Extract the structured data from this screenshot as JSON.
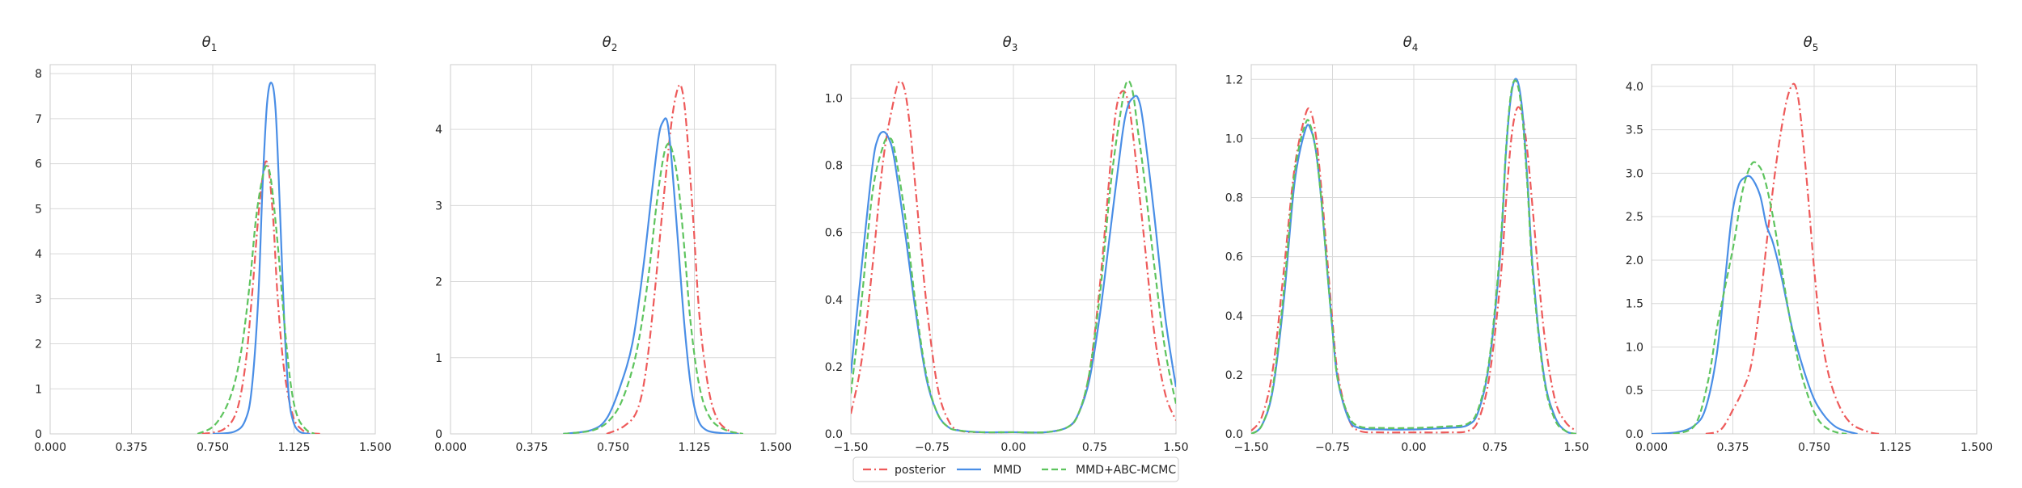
{
  "figure": {
    "legend": {
      "entries": [
        {
          "label": "posterior",
          "series_key": "posterior"
        },
        {
          "label": "MMD",
          "series_key": "mmd"
        },
        {
          "label": "MMD+ABC-MCMC",
          "series_key": "mmd_abc"
        }
      ]
    },
    "styles": {
      "posterior": {
        "color": "#ee5a5a",
        "dash": "dashdot"
      },
      "mmd": {
        "color": "#4a8ee6",
        "dash": "solid"
      },
      "mmd_abc": {
        "color": "#5ec45e",
        "dash": "dashed"
      }
    }
  },
  "chart_data": [
    {
      "type": "line",
      "title": "θ",
      "title_sub": "1",
      "xlim": [
        0,
        1.5
      ],
      "ylim": [
        0,
        8.2
      ],
      "xticks": [
        0,
        0.375,
        0.75,
        1.125,
        1.5
      ],
      "xtick_labels": [
        "0.000",
        "0.375",
        "0.750",
        "1.125",
        "1.500"
      ],
      "yticks": [
        0,
        1,
        2,
        3,
        4,
        5,
        6,
        7,
        8
      ],
      "ytick_labels": [
        "0",
        "1",
        "2",
        "3",
        "4",
        "5",
        "6",
        "7",
        "8"
      ],
      "grid": true,
      "series": [
        {
          "key": "posterior",
          "name": "posterior",
          "x": [
            0.7,
            0.8,
            0.86,
            0.9,
            0.93,
            0.96,
            0.98,
            0.995,
            1.01,
            1.03,
            1.05,
            1.08,
            1.12,
            1.16,
            1.2,
            1.25
          ],
          "y": [
            0,
            0.1,
            0.5,
            1.5,
            3.0,
            4.8,
            5.7,
            6.05,
            5.8,
            4.7,
            3.0,
            1.4,
            0.4,
            0.1,
            0.02,
            0
          ]
        },
        {
          "key": "mmd",
          "name": "MMD",
          "x": [
            0.75,
            0.85,
            0.9,
            0.93,
            0.96,
            0.98,
            1.0,
            1.02,
            1.04,
            1.06,
            1.08,
            1.1,
            1.12,
            1.15,
            1.2
          ],
          "y": [
            0,
            0.05,
            0.3,
            1.0,
            3.0,
            5.5,
            7.3,
            7.8,
            7.2,
            5.0,
            2.5,
            0.9,
            0.3,
            0.05,
            0
          ]
        },
        {
          "key": "mmd_abc",
          "name": "MMD+ABC-MCMC",
          "x": [
            0.68,
            0.76,
            0.83,
            0.88,
            0.92,
            0.95,
            0.98,
            1.0,
            1.02,
            1.05,
            1.08,
            1.11,
            1.14,
            1.18,
            1.22
          ],
          "y": [
            0,
            0.2,
            0.8,
            1.8,
            3.3,
            4.8,
            5.7,
            5.95,
            5.6,
            4.2,
            2.5,
            1.1,
            0.4,
            0.1,
            0
          ]
        }
      ]
    },
    {
      "type": "line",
      "title": "θ",
      "title_sub": "2",
      "xlim": [
        0,
        1.5
      ],
      "ylim": [
        0,
        4.85
      ],
      "xticks": [
        0,
        0.375,
        0.75,
        1.125,
        1.5
      ],
      "xtick_labels": [
        "0.000",
        "0.375",
        "0.750",
        "1.125",
        "1.500"
      ],
      "yticks": [
        0,
        1,
        2,
        3,
        4
      ],
      "ytick_labels": [
        "0",
        "1",
        "2",
        "3",
        "4"
      ],
      "grid": true,
      "series": [
        {
          "key": "posterior",
          "name": "posterior",
          "x": [
            0.72,
            0.8,
            0.86,
            0.9,
            0.94,
            0.98,
            1.02,
            1.05,
            1.07,
            1.09,
            1.12,
            1.15,
            1.19,
            1.23,
            1.28,
            1.33
          ],
          "y": [
            0,
            0.1,
            0.3,
            0.8,
            1.8,
            3.0,
            4.1,
            4.55,
            4.5,
            4.0,
            2.8,
            1.5,
            0.6,
            0.2,
            0.05,
            0
          ]
        },
        {
          "key": "mmd",
          "name": "MMD",
          "x": [
            0.52,
            0.65,
            0.72,
            0.78,
            0.84,
            0.89,
            0.93,
            0.96,
            0.98,
            1.0,
            1.02,
            1.05,
            1.08,
            1.11,
            1.14,
            1.18,
            1.25,
            1.33
          ],
          "y": [
            0,
            0.05,
            0.2,
            0.6,
            1.2,
            2.2,
            3.2,
            3.9,
            4.1,
            4.1,
            3.6,
            2.5,
            1.4,
            0.6,
            0.2,
            0.05,
            0.01,
            0
          ]
        },
        {
          "key": "mmd_abc",
          "name": "MMD+ABC-MCMC",
          "x": [
            0.52,
            0.66,
            0.74,
            0.8,
            0.86,
            0.91,
            0.95,
            0.98,
            1.0,
            1.02,
            1.05,
            1.08,
            1.11,
            1.15,
            1.2,
            1.27,
            1.35
          ],
          "y": [
            0,
            0.05,
            0.2,
            0.5,
            1.1,
            2.0,
            3.0,
            3.6,
            3.8,
            3.75,
            3.3,
            2.4,
            1.4,
            0.6,
            0.2,
            0.05,
            0
          ]
        }
      ]
    },
    {
      "type": "line",
      "title": "θ",
      "title_sub": "3",
      "xlim": [
        -1.5,
        1.5
      ],
      "ylim": [
        0,
        1.1
      ],
      "xticks": [
        -1.5,
        -0.75,
        0,
        0.75,
        1.5
      ],
      "xtick_labels": [
        "−1.50",
        "−0.75",
        "0.00",
        "0.75",
        "1.50"
      ],
      "yticks": [
        0,
        0.2,
        0.4,
        0.6,
        0.8,
        1.0
      ],
      "ytick_labels": [
        "0.0",
        "0.2",
        "0.4",
        "0.6",
        "0.8",
        "1.0"
      ],
      "grid": true,
      "series": [
        {
          "key": "posterior",
          "name": "posterior",
          "x": [
            -1.5,
            -1.4,
            -1.3,
            -1.2,
            -1.1,
            -1.05,
            -1.0,
            -0.95,
            -0.9,
            -0.8,
            -0.7,
            -0.6,
            -0.5,
            -0.3,
            0.0,
            0.3,
            0.5,
            0.6,
            0.7,
            0.8,
            0.9,
            0.95,
            1.0,
            1.05,
            1.1,
            1.2,
            1.3,
            1.4,
            1.5
          ],
          "y": [
            0.06,
            0.22,
            0.5,
            0.82,
            1.0,
            1.05,
            1.02,
            0.9,
            0.72,
            0.38,
            0.14,
            0.04,
            0.01,
            0.005,
            0.005,
            0.005,
            0.02,
            0.06,
            0.18,
            0.45,
            0.82,
            0.97,
            1.02,
            1.0,
            0.9,
            0.6,
            0.3,
            0.12,
            0.04
          ]
        },
        {
          "key": "mmd",
          "name": "MMD",
          "x": [
            -1.5,
            -1.4,
            -1.3,
            -1.25,
            -1.2,
            -1.15,
            -1.1,
            -1.0,
            -0.9,
            -0.8,
            -0.7,
            -0.6,
            -0.5,
            -0.3,
            0.0,
            0.3,
            0.5,
            0.6,
            0.7,
            0.8,
            0.9,
            1.0,
            1.05,
            1.1,
            1.15,
            1.2,
            1.3,
            1.4,
            1.5
          ],
          "y": [
            0.18,
            0.5,
            0.8,
            0.88,
            0.9,
            0.88,
            0.82,
            0.6,
            0.36,
            0.16,
            0.06,
            0.02,
            0.01,
            0.005,
            0.005,
            0.005,
            0.02,
            0.06,
            0.16,
            0.36,
            0.62,
            0.88,
            0.97,
            1.0,
            1.0,
            0.92,
            0.65,
            0.35,
            0.14
          ]
        },
        {
          "key": "mmd_abc",
          "name": "MMD+ABC-MCMC",
          "x": [
            -1.5,
            -1.4,
            -1.3,
            -1.2,
            -1.15,
            -1.1,
            -1.0,
            -0.9,
            -0.8,
            -0.7,
            -0.6,
            -0.5,
            -0.3,
            0.0,
            0.3,
            0.5,
            0.6,
            0.7,
            0.8,
            0.9,
            1.0,
            1.05,
            1.1,
            1.15,
            1.2,
            1.3,
            1.4,
            1.5
          ],
          "y": [
            0.12,
            0.4,
            0.72,
            0.86,
            0.88,
            0.85,
            0.65,
            0.38,
            0.17,
            0.06,
            0.02,
            0.01,
            0.005,
            0.005,
            0.005,
            0.02,
            0.06,
            0.18,
            0.42,
            0.75,
            0.98,
            1.05,
            1.02,
            0.9,
            0.78,
            0.5,
            0.25,
            0.09
          ]
        }
      ]
    },
    {
      "type": "line",
      "title": "θ",
      "title_sub": "4",
      "xlim": [
        -1.5,
        1.5
      ],
      "ylim": [
        0,
        1.25
      ],
      "xticks": [
        -1.5,
        -0.75,
        0,
        0.75,
        1.5
      ],
      "xtick_labels": [
        "−1.50",
        "−0.75",
        "0.00",
        "0.75",
        "1.50"
      ],
      "yticks": [
        0,
        0.2,
        0.4,
        0.6,
        0.8,
        1.0,
        1.2
      ],
      "ytick_labels": [
        "0.0",
        "0.2",
        "0.4",
        "0.6",
        "0.8",
        "1.0",
        "1.2"
      ],
      "grid": true,
      "series": [
        {
          "key": "posterior",
          "name": "posterior",
          "x": [
            -1.5,
            -1.4,
            -1.3,
            -1.2,
            -1.1,
            -1.0,
            -0.95,
            -0.9,
            -0.85,
            -0.8,
            -0.75,
            -0.7,
            -0.6,
            -0.5,
            -0.3,
            0.0,
            0.3,
            0.5,
            0.6,
            0.7,
            0.8,
            0.85,
            0.9,
            0.95,
            1.0,
            1.05,
            1.1,
            1.2,
            1.3,
            1.4,
            1.5
          ],
          "y": [
            0.01,
            0.06,
            0.22,
            0.55,
            0.9,
            1.08,
            1.09,
            1.0,
            0.82,
            0.6,
            0.38,
            0.2,
            0.05,
            0.01,
            0.005,
            0.005,
            0.005,
            0.01,
            0.05,
            0.2,
            0.52,
            0.78,
            1.0,
            1.1,
            1.08,
            0.95,
            0.75,
            0.35,
            0.12,
            0.04,
            0.01
          ]
        },
        {
          "key": "mmd",
          "name": "MMD",
          "x": [
            -1.5,
            -1.4,
            -1.3,
            -1.2,
            -1.1,
            -1.0,
            -0.95,
            -0.9,
            -0.85,
            -0.8,
            -0.75,
            -0.7,
            -0.6,
            -0.5,
            -0.3,
            0.0,
            0.3,
            0.5,
            0.6,
            0.7,
            0.8,
            0.85,
            0.9,
            0.95,
            1.0,
            1.05,
            1.1,
            1.2,
            1.3,
            1.4,
            1.5
          ],
          "y": [
            0.0,
            0.03,
            0.15,
            0.45,
            0.85,
            1.03,
            1.03,
            0.95,
            0.78,
            0.56,
            0.35,
            0.18,
            0.05,
            0.02,
            0.015,
            0.015,
            0.02,
            0.03,
            0.08,
            0.25,
            0.62,
            0.95,
            1.15,
            1.2,
            1.1,
            0.85,
            0.55,
            0.2,
            0.06,
            0.01,
            0.0
          ]
        },
        {
          "key": "mmd_abc",
          "name": "MMD+ABC-MCMC",
          "x": [
            -1.5,
            -1.4,
            -1.3,
            -1.2,
            -1.1,
            -1.0,
            -0.95,
            -0.9,
            -0.85,
            -0.8,
            -0.75,
            -0.7,
            -0.6,
            -0.5,
            -0.3,
            0.0,
            0.3,
            0.5,
            0.6,
            0.7,
            0.8,
            0.85,
            0.9,
            0.95,
            1.0,
            1.05,
            1.1,
            1.2,
            1.3,
            1.4,
            1.5
          ],
          "y": [
            0.0,
            0.03,
            0.16,
            0.48,
            0.88,
            1.05,
            1.04,
            0.95,
            0.78,
            0.56,
            0.35,
            0.18,
            0.06,
            0.025,
            0.02,
            0.02,
            0.025,
            0.035,
            0.09,
            0.26,
            0.64,
            0.96,
            1.16,
            1.19,
            1.08,
            0.83,
            0.53,
            0.19,
            0.05,
            0.01,
            0.0
          ]
        }
      ]
    },
    {
      "type": "line",
      "title": "θ",
      "title_sub": "5",
      "xlim": [
        0,
        1.5
      ],
      "ylim": [
        0,
        4.25
      ],
      "xticks": [
        0,
        0.375,
        0.75,
        1.125,
        1.5
      ],
      "xtick_labels": [
        "0.000",
        "0.375",
        "0.750",
        "1.125",
        "1.500"
      ],
      "yticks": [
        0,
        0.5,
        1.0,
        1.5,
        2.0,
        2.5,
        3.0,
        3.5,
        4.0
      ],
      "ytick_labels": [
        "0.0",
        "0.5",
        "1.0",
        "1.5",
        "2.0",
        "2.5",
        "3.0",
        "3.5",
        "4.0"
      ],
      "grid": true,
      "series": [
        {
          "key": "posterior",
          "name": "posterior",
          "x": [
            0.25,
            0.32,
            0.38,
            0.42,
            0.46,
            0.5,
            0.54,
            0.58,
            0.62,
            0.65,
            0.67,
            0.69,
            0.72,
            0.75,
            0.78,
            0.82,
            0.87,
            0.92,
            0.97,
            1.02,
            1.06
          ],
          "y": [
            0,
            0.05,
            0.3,
            0.5,
            0.8,
            1.5,
            2.4,
            3.2,
            3.8,
            4.02,
            3.95,
            3.6,
            2.8,
            1.9,
            1.2,
            0.65,
            0.3,
            0.12,
            0.05,
            0.01,
            0
          ]
        },
        {
          "key": "mmd",
          "name": "MMD",
          "x": [
            0.0,
            0.12,
            0.2,
            0.25,
            0.3,
            0.34,
            0.37,
            0.4,
            0.43,
            0.46,
            0.5,
            0.53,
            0.56,
            0.6,
            0.65,
            0.7,
            0.75,
            0.8,
            0.85,
            0.9,
            0.95
          ],
          "y": [
            0,
            0.02,
            0.1,
            0.3,
            0.9,
            1.8,
            2.5,
            2.85,
            2.95,
            2.95,
            2.75,
            2.4,
            2.2,
            1.8,
            1.2,
            0.75,
            0.4,
            0.2,
            0.08,
            0.03,
            0
          ]
        },
        {
          "key": "mmd_abc",
          "name": "MMD+ABC-MCMC",
          "x": [
            0.1,
            0.2,
            0.26,
            0.3,
            0.34,
            0.38,
            0.42,
            0.46,
            0.49,
            0.52,
            0.56,
            0.6,
            0.64,
            0.68,
            0.72,
            0.76,
            0.8,
            0.85,
            0.9
          ],
          "y": [
            0,
            0.1,
            0.6,
            1.2,
            1.7,
            2.2,
            2.8,
            3.1,
            3.1,
            2.95,
            2.5,
            1.9,
            1.3,
            0.8,
            0.45,
            0.2,
            0.08,
            0.02,
            0
          ]
        }
      ]
    }
  ]
}
